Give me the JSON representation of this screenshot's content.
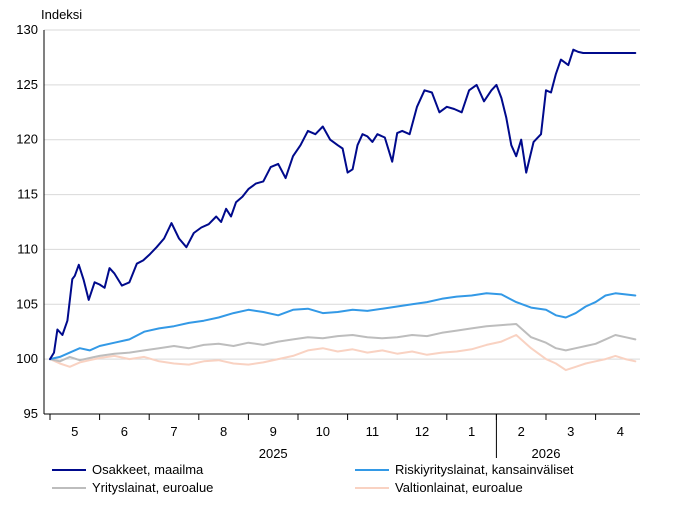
{
  "chart_data": {
    "type": "line",
    "ylabel": "Indeksi",
    "ylim": [
      95,
      130
    ],
    "yticks": [
      95,
      100,
      105,
      110,
      115,
      120,
      125,
      130
    ],
    "x_tick_labels": [
      "5",
      "6",
      "7",
      "8",
      "9",
      "10",
      "11",
      "12",
      "1",
      "2",
      "3",
      "4"
    ],
    "year_labels": [
      {
        "label": "2025",
        "month": 8.5
      },
      {
        "label": "2026",
        "month": 14
      }
    ],
    "x_start": 4.0,
    "x_end": 15.85,
    "grid": "horizontal",
    "legend_position": "bottom",
    "series": [
      {
        "name": "Osakkeet, maailma",
        "color": "#000a8c",
        "x": [
          4.0,
          4.08,
          4.15,
          4.25,
          4.35,
          4.45,
          4.5,
          4.58,
          4.68,
          4.78,
          4.9,
          5.0,
          5.1,
          5.2,
          5.3,
          5.45,
          5.6,
          5.75,
          5.88,
          6.0,
          6.15,
          6.3,
          6.45,
          6.6,
          6.75,
          6.9,
          7.05,
          7.2,
          7.35,
          7.45,
          7.55,
          7.65,
          7.75,
          7.88,
          8.0,
          8.15,
          8.3,
          8.45,
          8.6,
          8.75,
          8.9,
          9.05,
          9.2,
          9.35,
          9.5,
          9.65,
          9.8,
          9.9,
          10.0,
          10.1,
          10.2,
          10.3,
          10.4,
          10.5,
          10.6,
          10.75,
          10.9,
          11.0,
          11.1,
          11.25,
          11.4,
          11.55,
          11.7,
          11.85,
          12.0,
          12.15,
          12.3,
          12.45,
          12.6,
          12.75,
          12.9,
          13.0,
          13.1,
          13.2,
          13.3,
          13.4,
          13.5,
          13.6,
          13.75,
          13.9,
          14.0,
          14.1,
          14.2,
          14.3,
          14.45,
          14.55,
          14.65,
          14.75,
          14.85,
          14.95,
          15.1,
          15.2,
          15.3,
          15.4,
          15.5,
          15.6,
          15.7,
          15.8
        ],
        "values": [
          100.0,
          100.6,
          102.7,
          102.2,
          103.5,
          107.3,
          107.6,
          108.6,
          107.2,
          105.4,
          107.0,
          106.8,
          106.5,
          108.3,
          107.8,
          106.7,
          107.0,
          108.7,
          109.0,
          109.5,
          110.2,
          111.0,
          112.4,
          111.0,
          110.2,
          111.5,
          112.0,
          112.3,
          113.0,
          112.5,
          113.7,
          113.0,
          114.3,
          114.8,
          115.5,
          116.0,
          116.2,
          117.5,
          117.8,
          116.5,
          118.5,
          119.5,
          120.8,
          120.5,
          121.2,
          120.0,
          119.5,
          119.2,
          117.0,
          117.3,
          119.5,
          120.5,
          120.3,
          119.8,
          120.5,
          120.2,
          118.0,
          120.6,
          120.8,
          120.5,
          123.0,
          124.5,
          124.3,
          122.5,
          123.0,
          122.8,
          122.5,
          124.5,
          125.0,
          123.5,
          124.5,
          125.0,
          123.8,
          122.0,
          119.5,
          118.5,
          120.0,
          117.0,
          119.8,
          120.5,
          124.5,
          124.3,
          126.0,
          127.3,
          126.8,
          128.2,
          128.0,
          127.9,
          127.9,
          127.9,
          127.9,
          127.9,
          127.9,
          127.9,
          127.9,
          127.9,
          127.9,
          127.9
        ]
      },
      {
        "name": "Riskiyrityslainat, kansainväliset",
        "color": "#3399e6",
        "x": [
          4.0,
          4.2,
          4.4,
          4.6,
          4.8,
          5.0,
          5.3,
          5.6,
          5.9,
          6.2,
          6.5,
          6.8,
          7.1,
          7.4,
          7.7,
          8.0,
          8.3,
          8.6,
          8.9,
          9.2,
          9.5,
          9.8,
          10.1,
          10.4,
          10.7,
          11.0,
          11.3,
          11.6,
          11.9,
          12.2,
          12.5,
          12.8,
          13.1,
          13.4,
          13.7,
          14.0,
          14.2,
          14.4,
          14.6,
          14.8,
          15.0,
          15.2,
          15.4,
          15.6,
          15.8
        ],
        "values": [
          100.0,
          100.2,
          100.6,
          101.0,
          100.8,
          101.2,
          101.5,
          101.8,
          102.5,
          102.8,
          103.0,
          103.3,
          103.5,
          103.8,
          104.2,
          104.5,
          104.3,
          104.0,
          104.5,
          104.6,
          104.2,
          104.3,
          104.5,
          104.4,
          104.6,
          104.8,
          105.0,
          105.2,
          105.5,
          105.7,
          105.8,
          106.0,
          105.9,
          105.2,
          104.7,
          104.5,
          104.0,
          103.8,
          104.2,
          104.8,
          105.2,
          105.8,
          106.0,
          105.9,
          105.8
        ]
      },
      {
        "name": "Yrityslainat, euroalue",
        "color": "#bdbdbd",
        "x": [
          4.0,
          4.2,
          4.4,
          4.6,
          4.8,
          5.0,
          5.3,
          5.6,
          5.9,
          6.2,
          6.5,
          6.8,
          7.1,
          7.4,
          7.7,
          8.0,
          8.3,
          8.6,
          8.9,
          9.2,
          9.5,
          9.8,
          10.1,
          10.4,
          10.7,
          11.0,
          11.3,
          11.6,
          11.9,
          12.2,
          12.5,
          12.8,
          13.1,
          13.4,
          13.7,
          14.0,
          14.2,
          14.4,
          14.6,
          14.8,
          15.0,
          15.2,
          15.4,
          15.6,
          15.8
        ],
        "values": [
          100.0,
          99.8,
          100.2,
          99.9,
          100.1,
          100.3,
          100.5,
          100.6,
          100.8,
          101.0,
          101.2,
          101.0,
          101.3,
          101.4,
          101.2,
          101.5,
          101.3,
          101.6,
          101.8,
          102.0,
          101.9,
          102.1,
          102.2,
          102.0,
          101.9,
          102.0,
          102.2,
          102.1,
          102.4,
          102.6,
          102.8,
          103.0,
          103.1,
          103.2,
          102.0,
          101.5,
          101.0,
          100.8,
          101.0,
          101.2,
          101.4,
          101.8,
          102.2,
          102.0,
          101.8
        ]
      },
      {
        "name": "Valtionlainat, euroalue",
        "color": "#f9d2c2",
        "x": [
          4.0,
          4.2,
          4.4,
          4.6,
          4.8,
          5.0,
          5.3,
          5.6,
          5.9,
          6.2,
          6.5,
          6.8,
          7.1,
          7.4,
          7.7,
          8.0,
          8.3,
          8.6,
          8.9,
          9.2,
          9.5,
          9.8,
          10.1,
          10.4,
          10.7,
          11.0,
          11.3,
          11.6,
          11.9,
          12.2,
          12.5,
          12.8,
          13.1,
          13.4,
          13.7,
          14.0,
          14.2,
          14.4,
          14.6,
          14.8,
          15.0,
          15.2,
          15.4,
          15.6,
          15.8
        ],
        "values": [
          100.0,
          99.6,
          99.3,
          99.7,
          99.9,
          100.1,
          100.3,
          100.0,
          100.2,
          99.8,
          99.6,
          99.5,
          99.8,
          99.9,
          99.6,
          99.5,
          99.7,
          100.0,
          100.3,
          100.8,
          101.0,
          100.7,
          100.9,
          100.6,
          100.8,
          100.5,
          100.7,
          100.4,
          100.6,
          100.7,
          100.9,
          101.3,
          101.6,
          102.2,
          101.0,
          100.0,
          99.6,
          99.0,
          99.3,
          99.6,
          99.8,
          100.0,
          100.3,
          100.0,
          99.8
        ]
      }
    ]
  }
}
